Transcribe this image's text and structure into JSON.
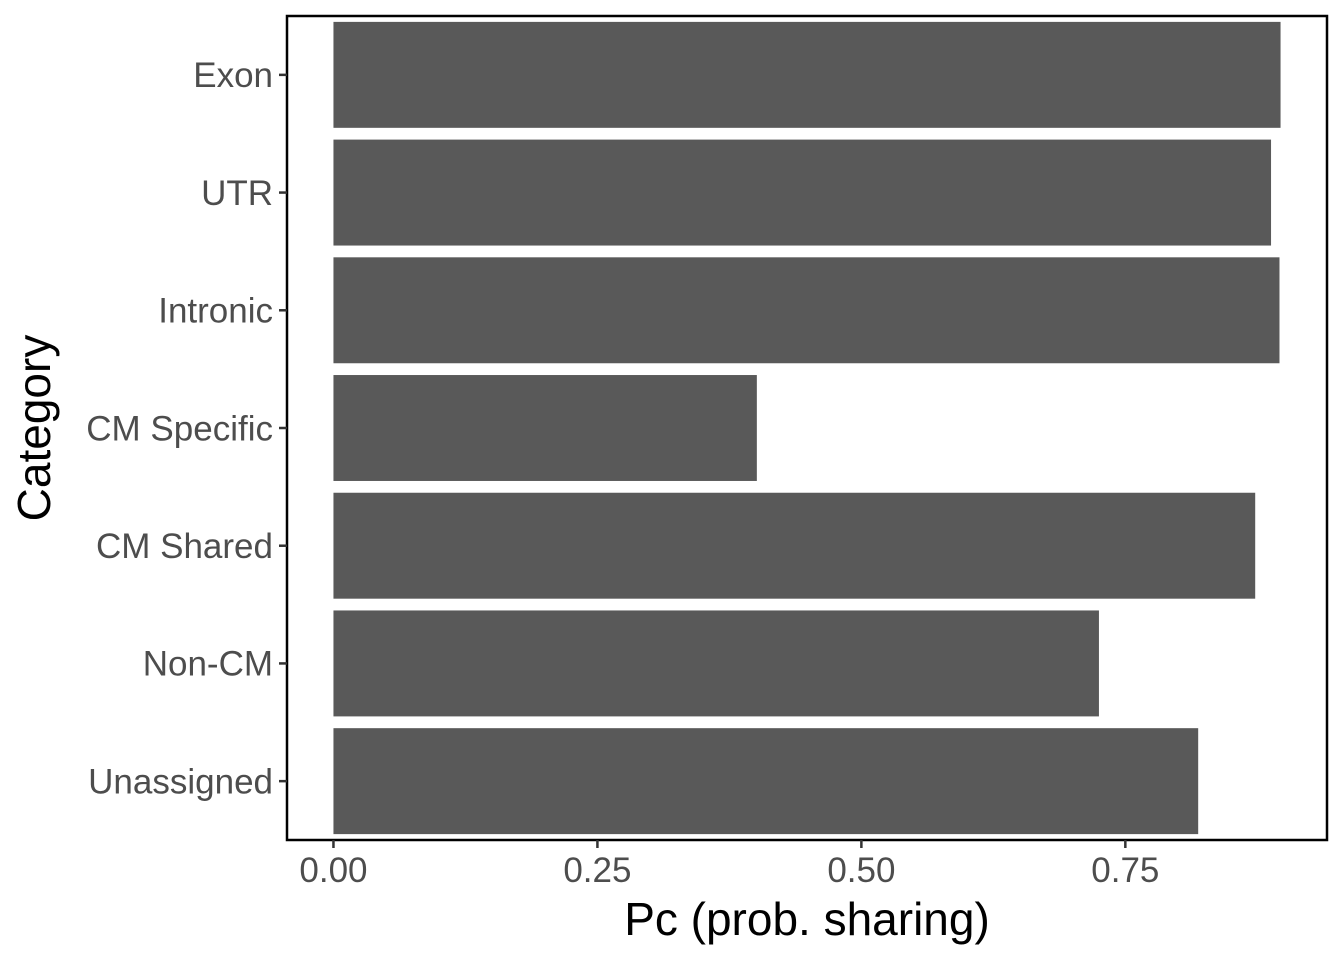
{
  "chart_data": {
    "type": "bar",
    "orientation": "horizontal",
    "categories": [
      "Exon",
      "UTR",
      "Intronic",
      "CM Specific",
      "CM Shared",
      "Non-CM",
      "Unassigned"
    ],
    "values": [
      0.897,
      0.888,
      0.896,
      0.401,
      0.873,
      0.725,
      0.819
    ],
    "xlabel": "Pc (prob. sharing)",
    "ylabel": "Category",
    "xlim": [
      -0.044,
      0.941
    ],
    "x_ticks": [
      0,
      0.25,
      0.5,
      0.75
    ],
    "x_tick_labels": [
      "0.00",
      "0.25",
      "0.50",
      "0.75"
    ],
    "grid": false,
    "legend": "none",
    "colors": {
      "bar": "#595959",
      "panel_border": "#000000",
      "tick_text": "#4d4d4d",
      "tick_mark": "#333333",
      "axis_title": "#000000",
      "background": "#ffffff"
    }
  }
}
